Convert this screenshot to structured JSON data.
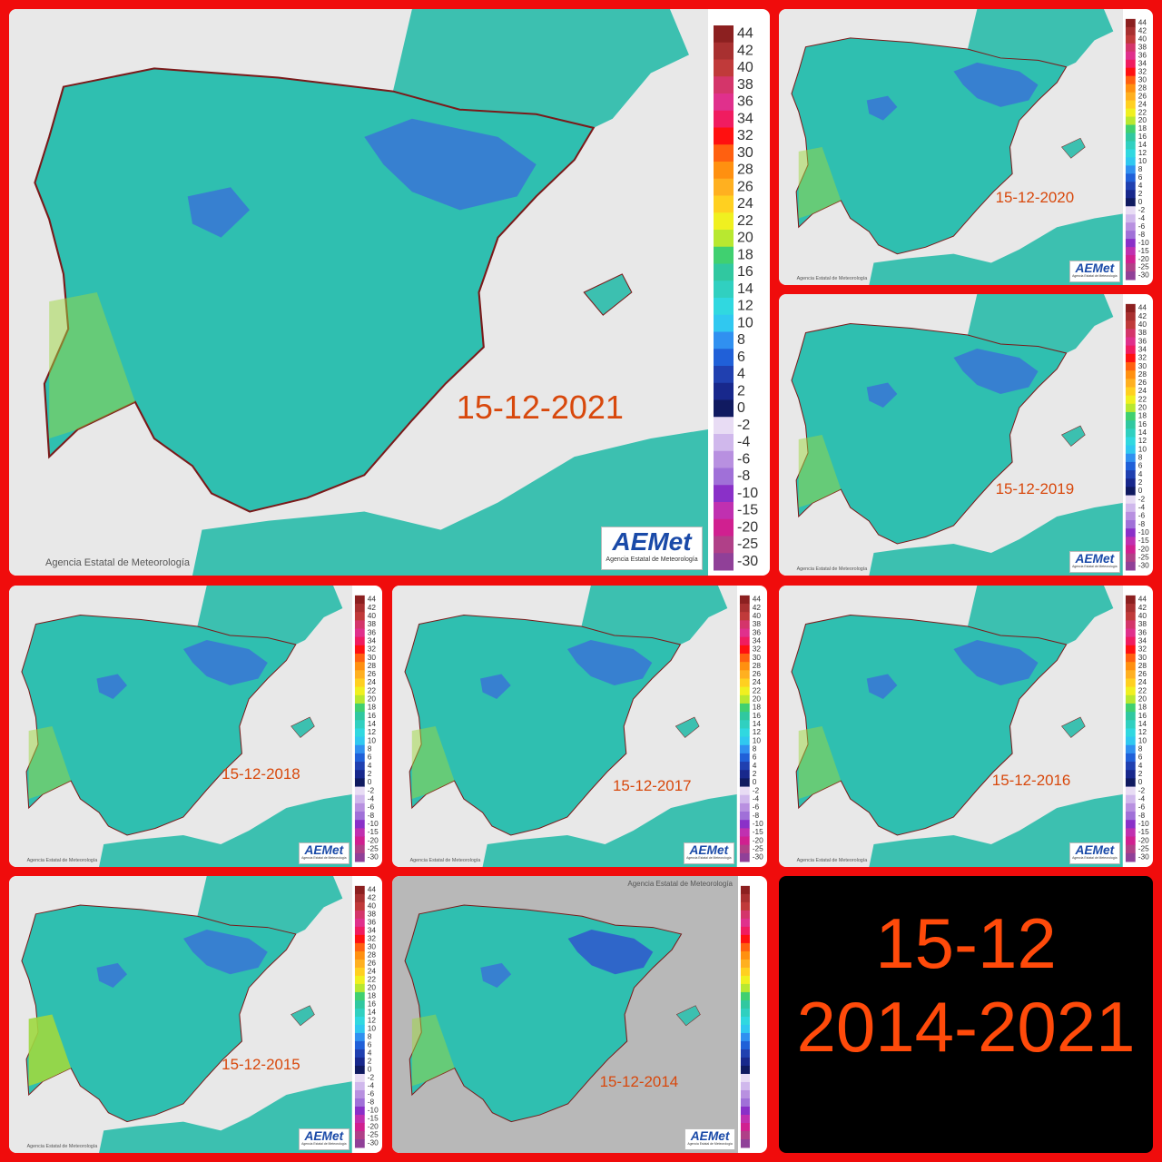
{
  "panels": [
    {
      "date": "15-12-2021"
    },
    {
      "date": "15-12-2020"
    },
    {
      "date": "15-12-2019"
    },
    {
      "date": "15-12-2018"
    },
    {
      "date": "15-12-2017"
    },
    {
      "date": "15-12-2016"
    },
    {
      "date": "15-12-2015"
    },
    {
      "date": "15-12-2014"
    }
  ],
  "credit": "Agencia Estatal de Meteorología",
  "logo": "AEMet",
  "logo_sub": "Agencia Estatal de Meteorología",
  "legend": [
    44,
    42,
    40,
    38,
    36,
    34,
    32,
    30,
    28,
    26,
    24,
    22,
    20,
    18,
    16,
    14,
    12,
    10,
    8,
    6,
    4,
    2,
    0,
    -2,
    -4,
    -6,
    -8,
    -10,
    -15,
    -20,
    -25,
    -30
  ],
  "summary": {
    "line1": "15-12",
    "line2": "2014-2021"
  }
}
